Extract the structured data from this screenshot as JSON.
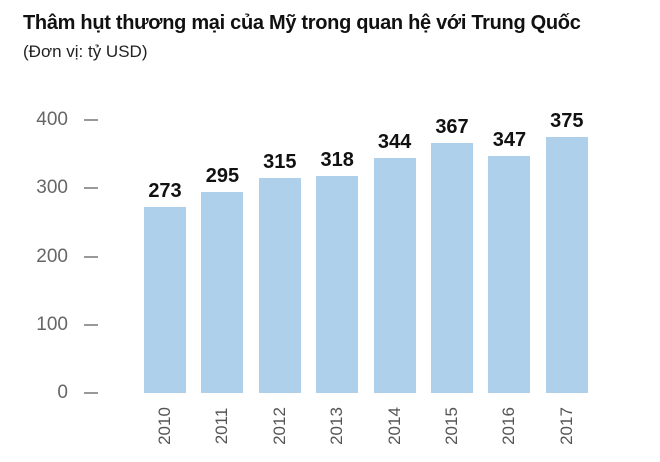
{
  "header": {
    "title": "Thâm hụt thương mại của Mỹ trong quan hệ với Trung Quốc",
    "subtitle": "(Đơn vị: tỷ USD)"
  },
  "chart_data": {
    "type": "bar",
    "title": "Thâm hụt thương mại của Mỹ trong quan hệ với Trung Quốc",
    "unit_label": "(Đơn vị: tỷ USD)",
    "categories": [
      "2010",
      "2011",
      "2012",
      "2013",
      "2014",
      "2015",
      "2016",
      "2017"
    ],
    "values": [
      273,
      295,
      315,
      318,
      344,
      367,
      347,
      375
    ],
    "yticks": [
      0,
      100,
      200,
      300,
      400
    ],
    "ylim": [
      0,
      400
    ],
    "xlabel": "",
    "ylabel": "",
    "grid": "off",
    "legend": "none",
    "colors": {
      "bar": "#aed0ea",
      "value_label": "#111111",
      "axis_label": "#666666",
      "tick_dash": "#999999",
      "year_label": "#555555",
      "background": "#ffffff"
    }
  }
}
